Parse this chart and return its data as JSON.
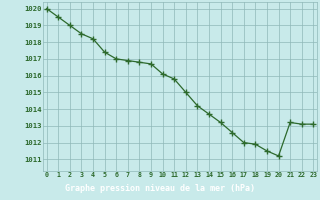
{
  "x": [
    0,
    1,
    2,
    3,
    4,
    5,
    6,
    7,
    8,
    9,
    10,
    11,
    12,
    13,
    14,
    15,
    16,
    17,
    18,
    19,
    20,
    21,
    22,
    23
  ],
  "y": [
    1020.0,
    1019.5,
    1019.0,
    1018.5,
    1018.2,
    1017.4,
    1017.0,
    1016.9,
    1016.8,
    1016.7,
    1016.1,
    1015.8,
    1015.0,
    1014.2,
    1013.7,
    1013.2,
    1012.6,
    1012.0,
    1011.9,
    1011.5,
    1011.2,
    1013.2,
    1013.1,
    1013.1
  ],
  "line_color": "#2d6a2d",
  "marker_color": "#2d6a2d",
  "bg_color": "#c8eaea",
  "plot_bg_color": "#c8eaea",
  "grid_color": "#8fb8b8",
  "xlabel": "Graphe pression niveau de la mer (hPa)",
  "xlabel_color": "#ffffff",
  "xlabel_bg": "#2d6a2d",
  "tick_color": "#2d6a2d",
  "ylabel_ticks": [
    1011,
    1012,
    1013,
    1014,
    1015,
    1016,
    1017,
    1018,
    1019,
    1020
  ],
  "ylim": [
    1010.3,
    1020.4
  ],
  "xlim": [
    -0.3,
    23.3
  ]
}
